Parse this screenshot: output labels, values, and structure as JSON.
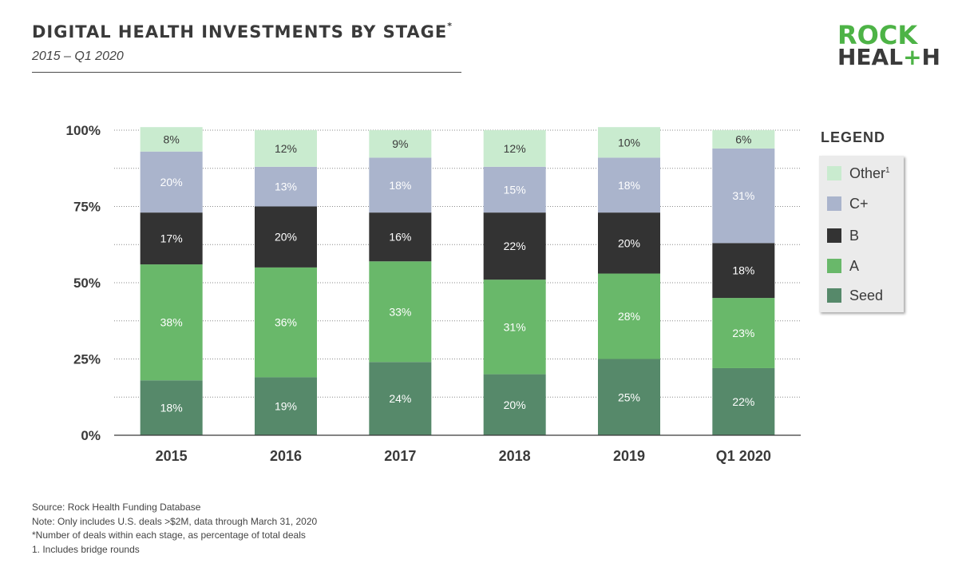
{
  "header": {
    "title": "DIGITAL HEALTH INVESTMENTS BY STAGE",
    "title_mark": "*",
    "subtitle": "2015 – Q1 2020"
  },
  "logo": {
    "line1": "ROCK",
    "line2_a": "HEAL",
    "line2_plus": "+",
    "line2_b": "H"
  },
  "legend": {
    "title": "LEGEND",
    "items": [
      {
        "label": "Other",
        "sup": "1",
        "color": "#c9ebcf"
      },
      {
        "label": "C+",
        "sup": "",
        "color": "#aab4cc"
      },
      {
        "label": "B",
        "sup": "",
        "color": "#333333"
      },
      {
        "label": "A",
        "sup": "",
        "color": "#69b86a"
      },
      {
        "label": "Seed",
        "sup": "",
        "color": "#56896a"
      }
    ]
  },
  "chart_data": {
    "type": "bar",
    "stacked": true,
    "percent": true,
    "categories": [
      "2015",
      "2016",
      "2017",
      "2018",
      "2019",
      "Q1 2020"
    ],
    "y_ticks": [
      "0%",
      "25%",
      "50%",
      "75%",
      "100%"
    ],
    "ylim": [
      0,
      100
    ],
    "grid": true,
    "legend_position": "right",
    "series": [
      {
        "name": "Seed",
        "color": "#56896a",
        "label_color": "#ffffff",
        "values": [
          18,
          19,
          24,
          20,
          25,
          22
        ]
      },
      {
        "name": "A",
        "color": "#69b86a",
        "label_color": "#ffffff",
        "values": [
          38,
          36,
          33,
          31,
          28,
          23
        ]
      },
      {
        "name": "B",
        "color": "#333333",
        "label_color": "#ffffff",
        "values": [
          17,
          20,
          16,
          22,
          20,
          18
        ]
      },
      {
        "name": "C+",
        "color": "#aab4cc",
        "label_color": "#ffffff",
        "values": [
          20,
          13,
          18,
          15,
          18,
          31
        ]
      },
      {
        "name": "Other",
        "color": "#c9ebcf",
        "label_color": "#3a3a3a",
        "values": [
          8,
          12,
          9,
          12,
          10,
          6
        ]
      }
    ]
  },
  "notes": [
    "Source: Rock Health Funding Database",
    "Note: Only includes U.S. deals >$2M, data through March 31, 2020",
    "*Number of deals within each stage, as percentage of total deals",
    "1. Includes bridge rounds"
  ]
}
